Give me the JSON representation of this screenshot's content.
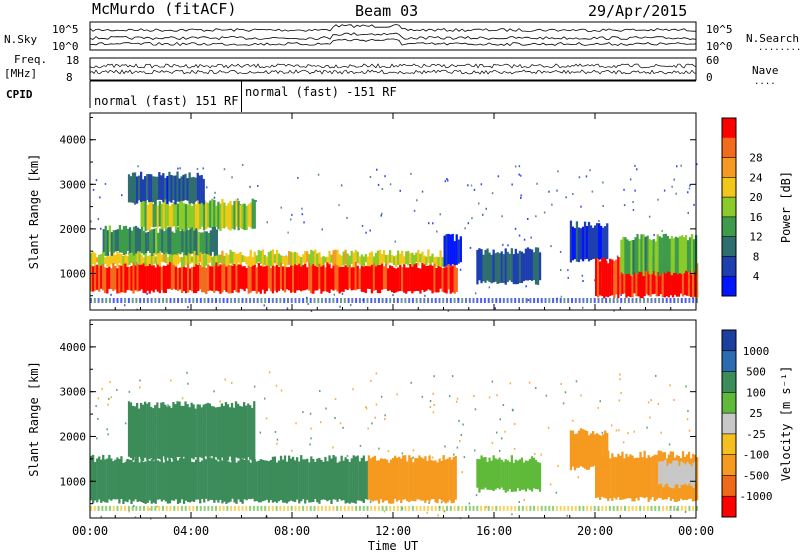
{
  "header": {
    "station": "McMurdo (fitACF)",
    "beam": "Beam 03",
    "date": "29/Apr/2015"
  },
  "top_panel": {
    "left_labels": {
      "nsky": "N.Sky",
      "freq": "Freq.",
      "freq_unit": "[MHz]",
      "cpid": "CPID"
    },
    "right_labels": {
      "nsearch": "N.Search",
      "nave": "Nave",
      "dots1": "........",
      "dots2": "...."
    },
    "noise_ticks_left": [
      "10^5",
      "10^0"
    ],
    "noise_ticks_right": [
      "10^5",
      "10^0"
    ],
    "freq_ticks_left": [
      "18",
      "8"
    ],
    "nave_ticks_right": [
      "60",
      "0"
    ],
    "cpid_segments": [
      {
        "label": "normal (fast) 151 RF",
        "start_hour": 0.0,
        "end_hour": 6.0
      },
      {
        "label": "normal (fast) -151 RF",
        "start_hour": 6.0,
        "end_hour": 24.0
      }
    ]
  },
  "chart_data": [
    {
      "type": "heatmap",
      "name": "power",
      "xlabel": "Time UT",
      "ylabel": "Slant Range [km]",
      "xlim": [
        0,
        24
      ],
      "ylim": [
        180,
        4600
      ],
      "x_ticks": [
        "00:00",
        "04:00",
        "08:00",
        "12:00",
        "16:00",
        "20:00",
        "00:00"
      ],
      "y_ticks": [
        "1000",
        "2000",
        "3000",
        "4000"
      ],
      "colorbar_label": "Power [dB]",
      "colorbar_ticks": [
        "4",
        "8",
        "12",
        "16",
        "20",
        "24",
        "28"
      ],
      "colorbar_colors": [
        "#0016ff",
        "#1e3fb0",
        "#2e6e6e",
        "#3d9b4b",
        "#8acb2a",
        "#f3c61a",
        "#f79a24",
        "#f26b1d",
        "#ff0000"
      ],
      "regions": [
        {
          "t0": 0.0,
          "t1": 14.5,
          "r0": 600,
          "r1": 1200,
          "value": 28
        },
        {
          "t0": 0.0,
          "t1": 14.2,
          "r0": 1200,
          "r1": 1450,
          "value": 18
        },
        {
          "t0": 0.5,
          "t1": 5.0,
          "r0": 1450,
          "r1": 2000,
          "value": 12
        },
        {
          "t0": 2.0,
          "t1": 6.5,
          "r0": 2000,
          "r1": 2600,
          "value": 16
        },
        {
          "t0": 1.5,
          "t1": 4.5,
          "r0": 2600,
          "r1": 3200,
          "value": 8
        },
        {
          "t0": 14.0,
          "t1": 14.7,
          "r0": 1200,
          "r1": 1800,
          "value": 4
        },
        {
          "t0": 15.3,
          "t1": 17.8,
          "r0": 800,
          "r1": 1500,
          "value": 8
        },
        {
          "t0": 19.0,
          "t1": 20.5,
          "r0": 1300,
          "r1": 2100,
          "value": 6
        },
        {
          "t0": 20.0,
          "t1": 24.0,
          "r0": 500,
          "r1": 1300,
          "value": 28
        },
        {
          "t0": 21.0,
          "t1": 24.0,
          "r0": 1000,
          "r1": 1800,
          "value": 14
        }
      ]
    },
    {
      "type": "heatmap",
      "name": "velocity",
      "xlabel": "Time UT",
      "ylabel": "Slant Range [km]",
      "xlim": [
        0,
        24
      ],
      "ylim": [
        180,
        4600
      ],
      "x_ticks": [
        "00:00",
        "04:00",
        "08:00",
        "12:00",
        "16:00",
        "20:00",
        "00:00"
      ],
      "y_ticks": [
        "1000",
        "2000",
        "3000",
        "4000"
      ],
      "colorbar_label": "Velocity [m s⁻¹]",
      "colorbar_ticks": [
        "1000",
        "500",
        "100",
        "25",
        "-25",
        "-100",
        "-500",
        "-1000"
      ],
      "colorbar_colors": [
        "#1a3f9f",
        "#2b6cb0",
        "#3c8c5a",
        "#5fba3a",
        "#c8c8c8",
        "#f4c020",
        "#f59a1e",
        "#ef6a18",
        "#ff0000"
      ],
      "regions": [
        {
          "t0": 0.0,
          "t1": 11.0,
          "r0": 550,
          "r1": 1500,
          "value": 300
        },
        {
          "t0": 11.0,
          "t1": 14.5,
          "r0": 550,
          "r1": 1500,
          "value": -300
        },
        {
          "t0": 1.5,
          "t1": 6.5,
          "r0": 1500,
          "r1": 2700,
          "value": 300
        },
        {
          "t0": 15.3,
          "t1": 17.8,
          "r0": 800,
          "r1": 1500,
          "value": 60
        },
        {
          "t0": 19.0,
          "t1": 20.5,
          "r0": 1300,
          "r1": 2100,
          "value": -300
        },
        {
          "t0": 20.0,
          "t1": 24.0,
          "r0": 600,
          "r1": 1600,
          "value": -300
        },
        {
          "t0": 22.5,
          "t1": 24.0,
          "r0": 900,
          "r1": 1400,
          "value": 0
        }
      ]
    }
  ]
}
